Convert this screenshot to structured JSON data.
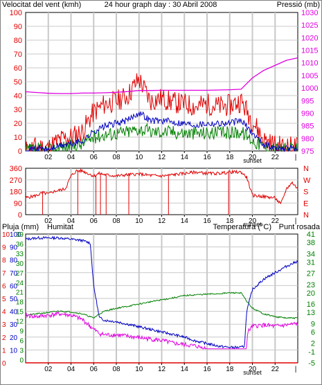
{
  "header": {
    "title": "24 hour graph day : 30 Abril 2008",
    "wind_label": "Velocitat del vent (kmh)",
    "pressure_label": "Pressió (mb)"
  },
  "bottom_header": {
    "rain_label": "Pluja (mm)",
    "humidity_label": "Humitat",
    "temperature_label": "Temperatura (°C)",
    "dewpoint_label": "Punt rosada"
  },
  "colors": {
    "wind_gust": "#e00000",
    "wind_avg": "#0000c0",
    "wind_speed": "#008000",
    "pressure": "#e000e0",
    "direction": "#e00000",
    "humidity": "#0000c0",
    "temperature": "#008000",
    "dewpoint": "#e000e0",
    "rain": "#e00000",
    "grid": "#c8c8c8",
    "axis": "#000000"
  },
  "x_ticks": [
    "02",
    "04",
    "06",
    "08",
    "10",
    "12",
    "14",
    "16",
    "18",
    "20",
    "22"
  ],
  "sunset_label": "sunset",
  "chart_data": [
    {
      "type": "line",
      "panel": "wind-pressure",
      "xlabel": "",
      "x_range_hours": [
        0,
        24
      ],
      "y_left": {
        "label": "Velocitat del vent (kmh)",
        "ticks": [
          0,
          10,
          20,
          30,
          40,
          50,
          60,
          70,
          80,
          90,
          100
        ],
        "range": [
          0,
          100
        ]
      },
      "y_right": {
        "label": "Pressió (mb)",
        "ticks": [
          975,
          980,
          985,
          990,
          995,
          1000,
          1005,
          1010,
          1015,
          1020,
          1025,
          1030
        ],
        "range": [
          975,
          1030
        ]
      },
      "series": [
        {
          "axis": "left",
          "points": [
            [
              0,
              0
            ],
            [
              1,
              3
            ],
            [
              2,
              2
            ],
            [
              3,
              8
            ],
            [
              4,
              10
            ],
            [
              5,
              14
            ],
            [
              6,
              28
            ],
            [
              7,
              34
            ],
            [
              8,
              36
            ],
            [
              9,
              40
            ],
            [
              10,
              52
            ],
            [
              11,
              36
            ],
            [
              12,
              38
            ],
            [
              13,
              35
            ],
            [
              14,
              34
            ],
            [
              15,
              32
            ],
            [
              16,
              34
            ],
            [
              17,
              32
            ],
            [
              18,
              33
            ],
            [
              19,
              36
            ],
            [
              20,
              22
            ],
            [
              21,
              8
            ],
            [
              22,
              4
            ],
            [
              23,
              3
            ],
            [
              24,
              3
            ]
          ]
        },
        {
          "axis": "left",
          "points": [
            [
              0,
              0
            ],
            [
              1,
              2
            ],
            [
              2,
              1
            ],
            [
              3,
              4
            ],
            [
              4,
              5
            ],
            [
              5,
              7
            ],
            [
              6,
              14
            ],
            [
              7,
              18
            ],
            [
              8,
              20
            ],
            [
              9,
              22
            ],
            [
              10,
              28
            ],
            [
              11,
              22
            ],
            [
              12,
              22
            ],
            [
              13,
              21
            ],
            [
              14,
              20
            ],
            [
              15,
              19
            ],
            [
              16,
              20
            ],
            [
              17,
              20
            ],
            [
              18,
              20
            ],
            [
              19,
              22
            ],
            [
              20,
              13
            ],
            [
              21,
              5
            ],
            [
              22,
              2
            ],
            [
              23,
              2
            ],
            [
              24,
              2
            ]
          ]
        },
        {
          "axis": "left",
          "points": [
            [
              0,
              0
            ],
            [
              1,
              1
            ],
            [
              2,
              0
            ],
            [
              3,
              3
            ],
            [
              4,
              3
            ],
            [
              5,
              5
            ],
            [
              6,
              10
            ],
            [
              7,
              12
            ],
            [
              8,
              13
            ],
            [
              9,
              14
            ],
            [
              10,
              16
            ],
            [
              11,
              14
            ],
            [
              12,
              14
            ],
            [
              13,
              14
            ],
            [
              14,
              13
            ],
            [
              15,
              13
            ],
            [
              16,
              13
            ],
            [
              17,
              13
            ],
            [
              18,
              13
            ],
            [
              19,
              14
            ],
            [
              20,
              8
            ],
            [
              21,
              3
            ],
            [
              22,
              1
            ],
            [
              23,
              1
            ],
            [
              24,
              1
            ]
          ]
        },
        {
          "axis": "right",
          "points": [
            [
              0,
              998.5
            ],
            [
              1,
              998.2
            ],
            [
              2,
              997.9
            ],
            [
              3,
              997.8
            ],
            [
              4,
              997.8
            ],
            [
              5,
              998
            ],
            [
              6,
              998
            ],
            [
              7,
              998.1
            ],
            [
              8,
              998.3
            ],
            [
              9,
              998.6
            ],
            [
              10,
              999
            ],
            [
              11,
              999
            ],
            [
              12,
              999.1
            ],
            [
              13,
              999.1
            ],
            [
              14,
              999.1
            ],
            [
              15,
              999.1
            ],
            [
              16,
              999.1
            ],
            [
              17,
              999.2
            ],
            [
              18,
              999.3
            ],
            [
              19,
              999.5
            ],
            [
              20,
              1004
            ],
            [
              21,
              1007
            ],
            [
              22,
              1009
            ],
            [
              23,
              1011
            ],
            [
              24,
              1012
            ]
          ]
        }
      ]
    },
    {
      "type": "line",
      "panel": "wind-direction",
      "y_left": {
        "ticks": [
          0,
          90,
          180,
          270,
          360
        ],
        "range": [
          0,
          360
        ]
      },
      "y_right": {
        "ticks": [
          "N",
          "W",
          "S",
          "E",
          "N"
        ]
      },
      "series": [
        {
          "points": [
            [
              0,
              130
            ],
            [
              0.5,
              140
            ],
            [
              1,
              150
            ],
            [
              1.5,
              170
            ],
            [
              2,
              160
            ],
            [
              2.5,
              180
            ],
            [
              3,
              190
            ],
            [
              3.5,
              200
            ],
            [
              4,
              300
            ],
            [
              4.5,
              340
            ],
            [
              5,
              340
            ],
            [
              5.5,
              320
            ],
            [
              6,
              300
            ],
            [
              6.5,
              320
            ],
            [
              7,
              310
            ],
            [
              8,
              300
            ],
            [
              9,
              310
            ],
            [
              10,
              315
            ],
            [
              11,
              305
            ],
            [
              12,
              300
            ],
            [
              13,
              310
            ],
            [
              14,
              320
            ],
            [
              15,
              330
            ],
            [
              16,
              320
            ],
            [
              17,
              320
            ],
            [
              18,
              330
            ],
            [
              19,
              330
            ],
            [
              19.5,
              290
            ],
            [
              20,
              150
            ],
            [
              21,
              140
            ],
            [
              22,
              130
            ],
            [
              22.5,
              80
            ],
            [
              23,
              200
            ],
            [
              23.5,
              250
            ],
            [
              24,
              200
            ]
          ]
        }
      ]
    },
    {
      "type": "line",
      "panel": "temperature-humidity",
      "y_left": {
        "label": "Pluja (mm)",
        "ticks": [
          0,
          1,
          2,
          3,
          4,
          5,
          6,
          7,
          8,
          9,
          10
        ],
        "range": [
          0,
          10
        ]
      },
      "y_left2": {
        "label": "Humitat",
        "ticks": [
          0,
          10,
          20,
          30,
          40,
          50,
          60,
          70,
          80,
          90,
          100
        ],
        "range": [
          0,
          100
        ]
      },
      "y_left3": {
        "ticks": [
          0,
          3,
          6,
          9,
          12,
          15,
          18,
          21,
          24,
          27,
          30,
          33,
          36,
          39
        ],
        "range": [
          -1,
          39
        ]
      },
      "y_right": {
        "label": "Temperatura (°C)",
        "ticks": [
          -5,
          -1,
          2,
          6,
          9,
          13,
          16,
          20,
          23,
          27,
          31,
          34,
          38,
          41
        ],
        "range": [
          -5,
          41
        ]
      },
      "series": [
        {
          "name": "Humitat",
          "axis": "humidity",
          "points": [
            [
              0,
              96
            ],
            [
              1,
              97
            ],
            [
              2,
              97
            ],
            [
              3,
              97
            ],
            [
              4,
              96
            ],
            [
              5,
              95
            ],
            [
              5.7,
              93
            ],
            [
              6,
              60
            ],
            [
              6.5,
              35
            ],
            [
              7,
              33
            ],
            [
              8,
              32
            ],
            [
              9,
              30
            ],
            [
              10,
              28
            ],
            [
              11,
              26
            ],
            [
              12,
              24
            ],
            [
              13,
              22
            ],
            [
              14,
              20
            ],
            [
              15,
              17
            ],
            [
              16,
              15
            ],
            [
              17,
              13
            ],
            [
              18,
              12
            ],
            [
              19,
              12
            ],
            [
              19.3,
              13
            ],
            [
              19.5,
              40
            ],
            [
              20,
              57
            ],
            [
              21,
              65
            ],
            [
              22,
              70
            ],
            [
              23,
              75
            ],
            [
              24,
              79
            ]
          ]
        },
        {
          "name": "Temperatura (°C)",
          "axis": "temperature",
          "points": [
            [
              0,
              12
            ],
            [
              1,
              12.5
            ],
            [
              2,
              13
            ],
            [
              3,
              13.5
            ],
            [
              4,
              13.2
            ],
            [
              5,
              12.5
            ],
            [
              6,
              11
            ],
            [
              6.5,
              12.5
            ],
            [
              7,
              13.5
            ],
            [
              8,
              14.5
            ],
            [
              9,
              15.2
            ],
            [
              10,
              16
            ],
            [
              11,
              16.8
            ],
            [
              12,
              17.5
            ],
            [
              13,
              18.2
            ],
            [
              14,
              19
            ],
            [
              15,
              19.3
            ],
            [
              16,
              19.5
            ],
            [
              17,
              19.7
            ],
            [
              18,
              20
            ],
            [
              19,
              20
            ],
            [
              19.5,
              17
            ],
            [
              20,
              14.5
            ],
            [
              21,
              12.5
            ],
            [
              22,
              11.5
            ],
            [
              23,
              11
            ],
            [
              24,
              11
            ]
          ]
        },
        {
          "name": "Punt rosada",
          "axis": "temperature",
          "points": [
            [
              0,
              12
            ],
            [
              1,
              11.5
            ],
            [
              2,
              12
            ],
            [
              3,
              12.5
            ],
            [
              4,
              12
            ],
            [
              5,
              10.5
            ],
            [
              6,
              7
            ],
            [
              6.5,
              5.5
            ],
            [
              7,
              5
            ],
            [
              8,
              5
            ],
            [
              9,
              4.5
            ],
            [
              10,
              4
            ],
            [
              11,
              3.5
            ],
            [
              12,
              3
            ],
            [
              13,
              2
            ],
            [
              14,
              1.5
            ],
            [
              15,
              1
            ],
            [
              16,
              0
            ],
            [
              17,
              -0.5
            ],
            [
              18,
              -1
            ],
            [
              19,
              -1.5
            ],
            [
              19.4,
              -2
            ],
            [
              19.6,
              6
            ],
            [
              20,
              8
            ],
            [
              21,
              8.5
            ],
            [
              22,
              8
            ],
            [
              23,
              8.5
            ],
            [
              24,
              9
            ]
          ]
        },
        {
          "name": "Pluja (mm)",
          "axis": "rain",
          "points": [
            [
              0,
              0
            ],
            [
              24,
              0
            ]
          ]
        }
      ]
    }
  ]
}
